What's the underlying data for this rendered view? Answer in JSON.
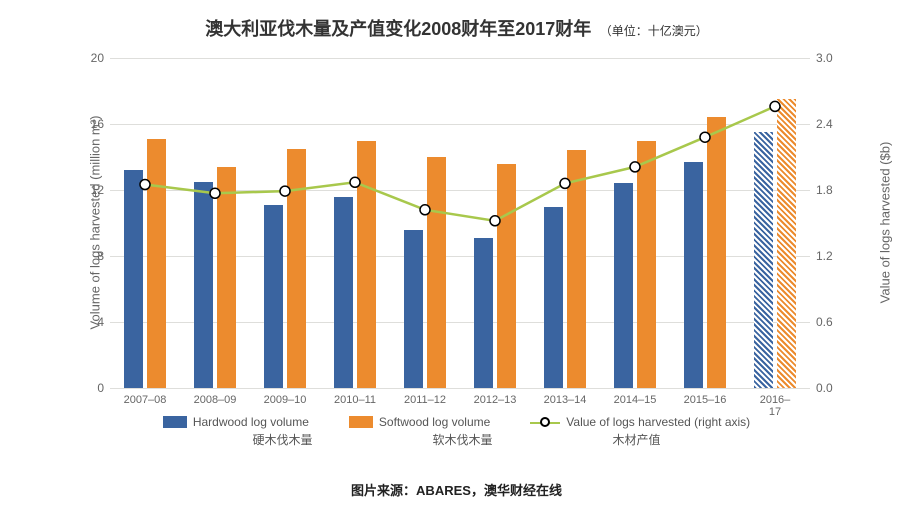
{
  "title": {
    "main": "澳大利亚伐木量及产值变化2008财年至2017财年",
    "sub": "（单位：十亿澳元）",
    "main_fontsize": 18,
    "main_weight": "bold",
    "sub_fontsize": 12,
    "color": "#333333"
  },
  "chart": {
    "type": "grouped-bar-with-line",
    "categories": [
      "2007–08",
      "2008–09",
      "2009–10",
      "2010–11",
      "2011–12",
      "2012–13",
      "2013–14",
      "2014–15",
      "2015–16",
      "2016–17"
    ],
    "category_fontsize": 11,
    "category_color": "#666666",
    "y_left": {
      "min": 0,
      "max": 20,
      "ticks": [
        0,
        4,
        8,
        12,
        16,
        20
      ],
      "title": "Volume of logs harvested (million m³)",
      "tick_fontsize": 12,
      "title_fontsize": 13,
      "color": "#666666"
    },
    "y_right": {
      "min": 0,
      "max": 3.0,
      "ticks": [
        0,
        0.6,
        1.2,
        1.8,
        2.4,
        3.0
      ],
      "title": "Value of logs harvested ($b)",
      "tick_fontsize": 12,
      "title_fontsize": 13,
      "color": "#666666"
    },
    "grid_color": "#dededb",
    "background_color": "#ffffff",
    "series_hardwood": {
      "label_en": "Hardwood log volume",
      "label_zh": "硬木伐木量",
      "color": "#3a64a0",
      "values": [
        13.2,
        12.5,
        11.1,
        11.6,
        9.6,
        9.1,
        11.0,
        12.4,
        13.7,
        15.5
      ],
      "last_hatched": true
    },
    "series_softwood": {
      "label_en": "Softwood log volume",
      "label_zh": "软木伐木量",
      "color": "#ec8b2e",
      "values": [
        15.1,
        13.4,
        14.5,
        15.0,
        14.0,
        13.6,
        14.4,
        15.0,
        16.4,
        17.5
      ],
      "last_hatched": true
    },
    "series_value": {
      "label_en": "Value of logs harvested (right axis)",
      "label_zh": "木材产值",
      "line_color": "#a8c84c",
      "marker_fill": "#ffffff",
      "marker_stroke": "#000000",
      "marker_radius": 5,
      "line_width": 2.5,
      "values": [
        1.85,
        1.77,
        1.79,
        1.87,
        1.62,
        1.52,
        1.86,
        2.01,
        2.28,
        2.56
      ]
    },
    "bar_width_ratio": 0.28,
    "bar_gap_ratio": 0.05
  },
  "legend": {
    "fontsize": 12,
    "color_text": "#555555"
  },
  "source": {
    "text": "图片来源：ABARES，澳华财经在线",
    "fontsize": 13,
    "color": "#222222"
  }
}
